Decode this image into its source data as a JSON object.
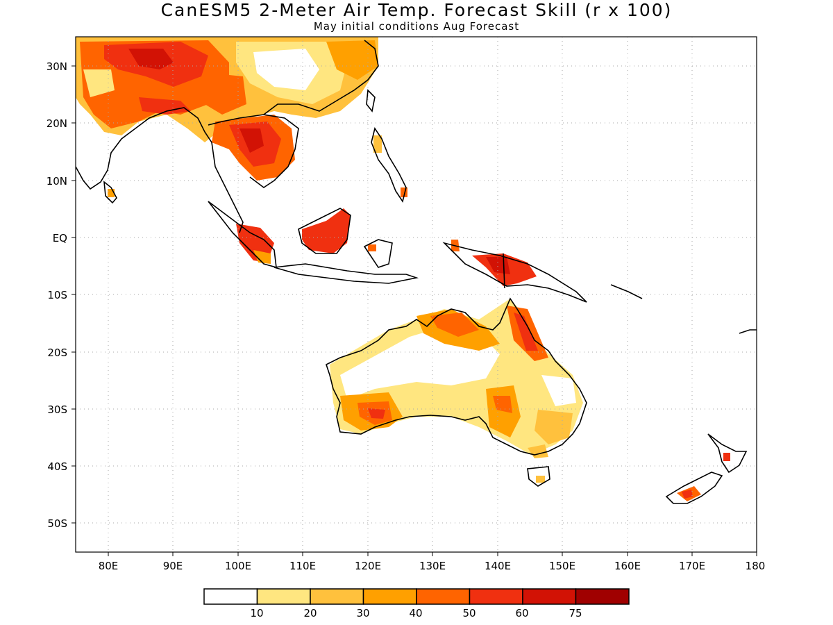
{
  "title": "CanESM5 2-Meter Air Temp. Forecast Skill (r x 100)",
  "subtitle": "May initial conditions  Aug Forecast",
  "map": {
    "region": "Asia-Pacific / Australia",
    "lon_range": [
      75,
      180
    ],
    "lat_range": [
      -55,
      35
    ],
    "grid": "dotted",
    "lat_labels": [
      "30N",
      "20N",
      "10N",
      "EQ",
      "10S",
      "20S",
      "30S",
      "40S",
      "50S"
    ],
    "lon_labels": [
      "80E",
      "90E",
      "100E",
      "110E",
      "120E",
      "130E",
      "140E",
      "150E",
      "160E",
      "170E",
      "180"
    ]
  },
  "colorbar": {
    "colors": [
      "#ffffff",
      "#ffe680",
      "#ffc13d",
      "#ffa000",
      "#ff6400",
      "#f03010",
      "#d21205",
      "#a00000"
    ],
    "labels": [
      "10",
      "20",
      "30",
      "40",
      "50",
      "60",
      "75"
    ]
  },
  "skill_patches": [
    {
      "region": "South Asia / Himalaya",
      "level": "40-60"
    },
    {
      "region": "Tibetan Plateau / China",
      "level": "10-40"
    },
    {
      "region": "Indochina",
      "level": "50-75"
    },
    {
      "region": "Sumatra",
      "level": "50-60"
    },
    {
      "region": "Borneo",
      "level": "50-60"
    },
    {
      "region": "New Guinea",
      "level": "50-75"
    },
    {
      "region": "Northern Australia",
      "level": "40-60"
    },
    {
      "region": "Interior Australia",
      "level": "0-30"
    },
    {
      "region": "Southwest Australia",
      "level": "40-60"
    },
    {
      "region": "Eastern Australia",
      "level": "20-50"
    },
    {
      "region": "New Zealand",
      "level": "50-60"
    }
  ]
}
